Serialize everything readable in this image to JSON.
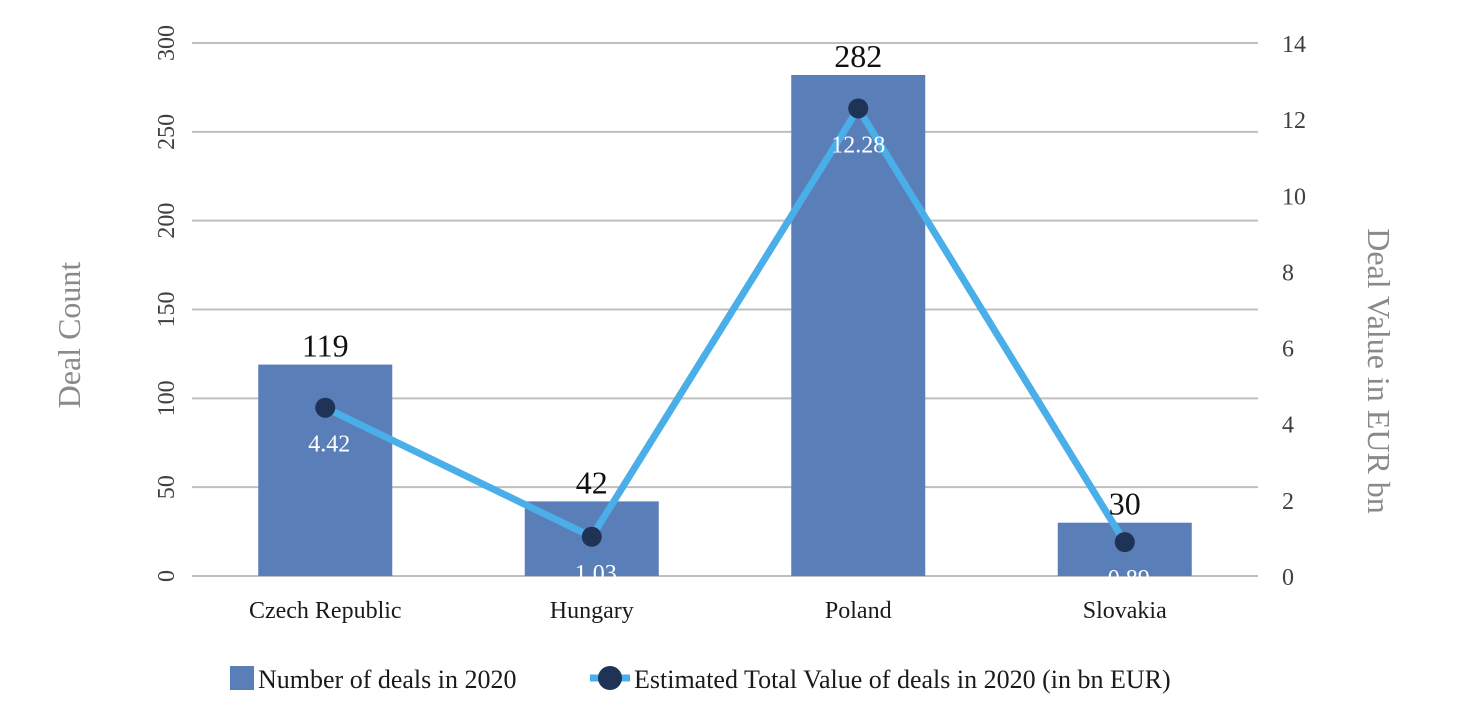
{
  "chart_data": {
    "type": "bar",
    "categories": [
      "Czech Republic",
      "Hungary",
      "Poland",
      "Slovakia"
    ],
    "series": [
      {
        "name": "Number of deals in 2020",
        "type": "bar",
        "axis": "left",
        "values": [
          119,
          42,
          282,
          30
        ],
        "labels": [
          "119",
          "42",
          "282",
          "30"
        ],
        "color": "#5a7fb8"
      },
      {
        "name": "Estimated Total Value of deals in 2020 (in bn EUR)",
        "type": "line",
        "axis": "right",
        "values": [
          4.42,
          1.03,
          12.28,
          0.89
        ],
        "labels": [
          "4.42",
          "1.03",
          "12.28",
          "0.89"
        ],
        "line_color": "#4aaee8",
        "marker_color": "#1e3356"
      }
    ],
    "ylabel": "Deal Count",
    "ylabel_right": "Deal Value in EUR bn",
    "ylim": [
      0,
      300
    ],
    "ylim_right": [
      0,
      14
    ],
    "yticks": [
      "0",
      "50",
      "100",
      "150",
      "200",
      "250",
      "300"
    ],
    "yticks_right": [
      "0",
      "2",
      "4",
      "6",
      "8",
      "10",
      "12",
      "14"
    ],
    "grid": true,
    "gridline_color": "#bfbfbf",
    "legend_position": "bottom"
  }
}
